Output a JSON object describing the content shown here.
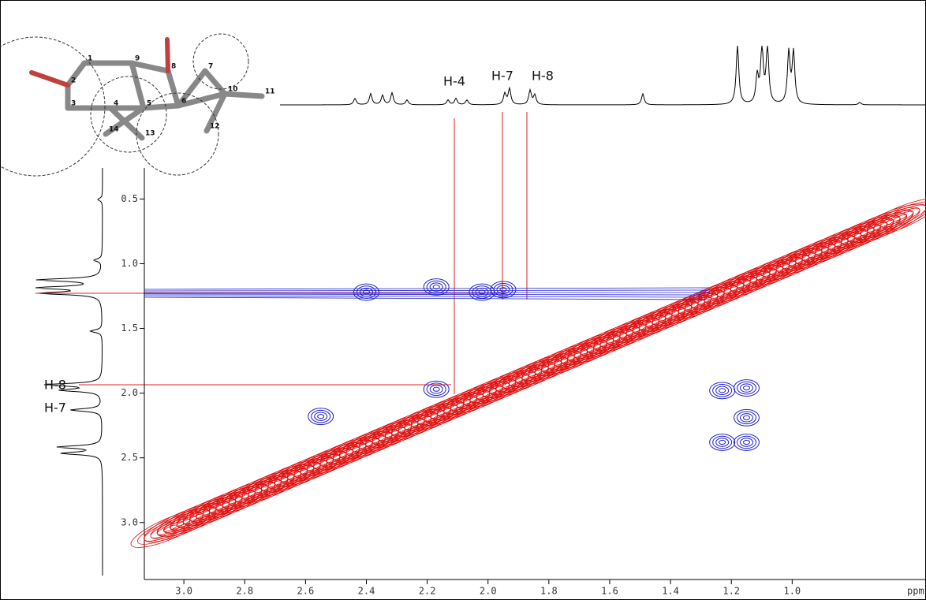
{
  "chart_data": {
    "type": "contour",
    "x_label": "ppm",
    "xlim": [
      3.13,
      0.56
    ],
    "xticks": [
      {
        "value": 3.0,
        "label": "3.0"
      },
      2.8,
      2.6,
      2.4,
      2.2,
      {
        "value": 2.0,
        "label": "2.0"
      },
      1.8,
      1.6,
      1.4,
      1.2,
      {
        "value": 1.0,
        "label": "1.0"
      }
    ],
    "ylim": [
      0.26,
      3.44
    ],
    "yticks": [
      0.5,
      {
        "value": 1.0,
        "label": "1.0"
      },
      1.5,
      {
        "value": 2.0,
        "label": "2.0"
      },
      2.5,
      {
        "value": 3.0,
        "label": "3.0"
      }
    ],
    "cross_peaks": {
      "color": "#1f1fd0",
      "x": [
        2.4,
        2.17,
        2.02,
        1.95,
        2.17,
        1.23,
        1.15,
        1.15,
        1.23,
        1.15,
        2.55
      ],
      "y": [
        1.22,
        1.18,
        1.22,
        1.2,
        1.97,
        1.98,
        1.96,
        2.19,
        2.38,
        2.38,
        2.18
      ]
    },
    "diagonal_color": "#e01010",
    "annotations": {
      "top": [
        "H-4",
        "H-7",
        "H-8"
      ],
      "left": [
        "H-8",
        "H-7"
      ]
    },
    "atom_labels": [
      1,
      2,
      3,
      4,
      5,
      6,
      7,
      8,
      9,
      10,
      11,
      12,
      13,
      14
    ]
  }
}
